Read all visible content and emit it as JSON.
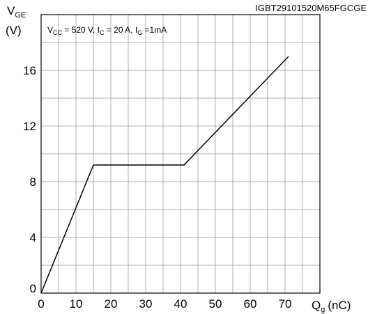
{
  "chart_data": {
    "type": "line",
    "part_number": "IGBT29101520M65FGCGE",
    "y_axis": {
      "symbol": "V",
      "subscript": "GE",
      "unit": "(V)"
    },
    "x_axis": {
      "symbol": "Q",
      "subscript": "g",
      "unit": "(nC)"
    },
    "conditions": {
      "vcc_symbol": "V",
      "vcc_sub": "CC",
      "vcc_value": " = 520 V, ",
      "ic_symbol": "I",
      "ic_sub": "C",
      "ic_value": " = 20 A, ",
      "ig_symbol": "I",
      "ig_sub": "G",
      "ig_value": " =1mA"
    },
    "xlim": [
      0,
      80
    ],
    "ylim": [
      0,
      20
    ],
    "x_ticks": [
      0,
      10,
      20,
      30,
      40,
      50,
      60,
      70
    ],
    "x_tick_labels": [
      "0",
      "10",
      "20",
      "30",
      "40",
      "50",
      "60",
      "70"
    ],
    "y_ticks": [
      0,
      4,
      8,
      12,
      16
    ],
    "y_tick_labels": [
      "0",
      "4",
      "8",
      "12",
      "16"
    ],
    "grid": true,
    "series": [
      {
        "x": [
          0,
          15,
          41,
          71
        ],
        "y": [
          0,
          9.2,
          9.2,
          17
        ]
      }
    ],
    "line_color": "#000000",
    "grid_color": "#999999"
  }
}
